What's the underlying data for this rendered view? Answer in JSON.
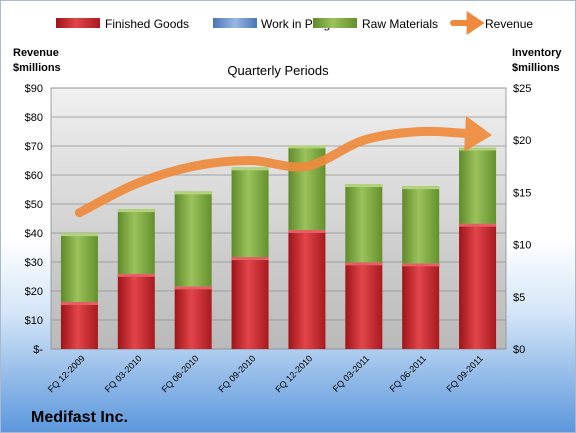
{
  "chart_data": {
    "type": "bar",
    "title": "Quarterly Periods",
    "company": "Medifast Inc.",
    "y_left_label_line1": "Revenue",
    "y_left_label_line2": "$millions",
    "y_right_label_line1": "Inventory",
    "y_right_label_line2": "$millions",
    "categories": [
      "FQ 12-2009",
      "FQ 03-2010",
      "FQ 06-2010",
      "FQ 09-2010",
      "FQ 12-2010",
      "FQ 03-2011",
      "FQ 06-2011",
      "FQ 09-2011"
    ],
    "stack_axis": "right",
    "series": [
      {
        "name": "Finished Goods",
        "axis": "right",
        "color": "#c0262c",
        "values": [
          4.5,
          7.2,
          6.0,
          8.8,
          11.4,
          8.3,
          8.2,
          12.0
        ]
      },
      {
        "name": "Work in Progress",
        "axis": "right",
        "color": "#6f95d1",
        "values": [
          0,
          0,
          0,
          0,
          0,
          0,
          0,
          0
        ]
      },
      {
        "name": "Raw Materials",
        "axis": "right",
        "color": "#7aa23c",
        "values": [
          6.6,
          6.2,
          9.1,
          8.6,
          8.1,
          7.5,
          7.4,
          7.3
        ]
      },
      {
        "name": "Revenue",
        "axis": "left",
        "color": "#ef8a3c",
        "type": "line",
        "values": [
          47,
          57,
          63,
          65,
          63,
          72,
          75,
          74
        ]
      }
    ],
    "y_left": {
      "min": 0,
      "max": 90,
      "step": 10,
      "ticks": [
        "$-",
        "$10",
        "$20",
        "$30",
        "$40",
        "$50",
        "$60",
        "$70",
        "$80",
        "$90"
      ]
    },
    "y_right": {
      "min": 0,
      "max": 25,
      "step": 5,
      "ticks": [
        "$0",
        "$5",
        "$10",
        "$15",
        "$20",
        "$25"
      ]
    },
    "legend_position": "top",
    "grid": true
  }
}
